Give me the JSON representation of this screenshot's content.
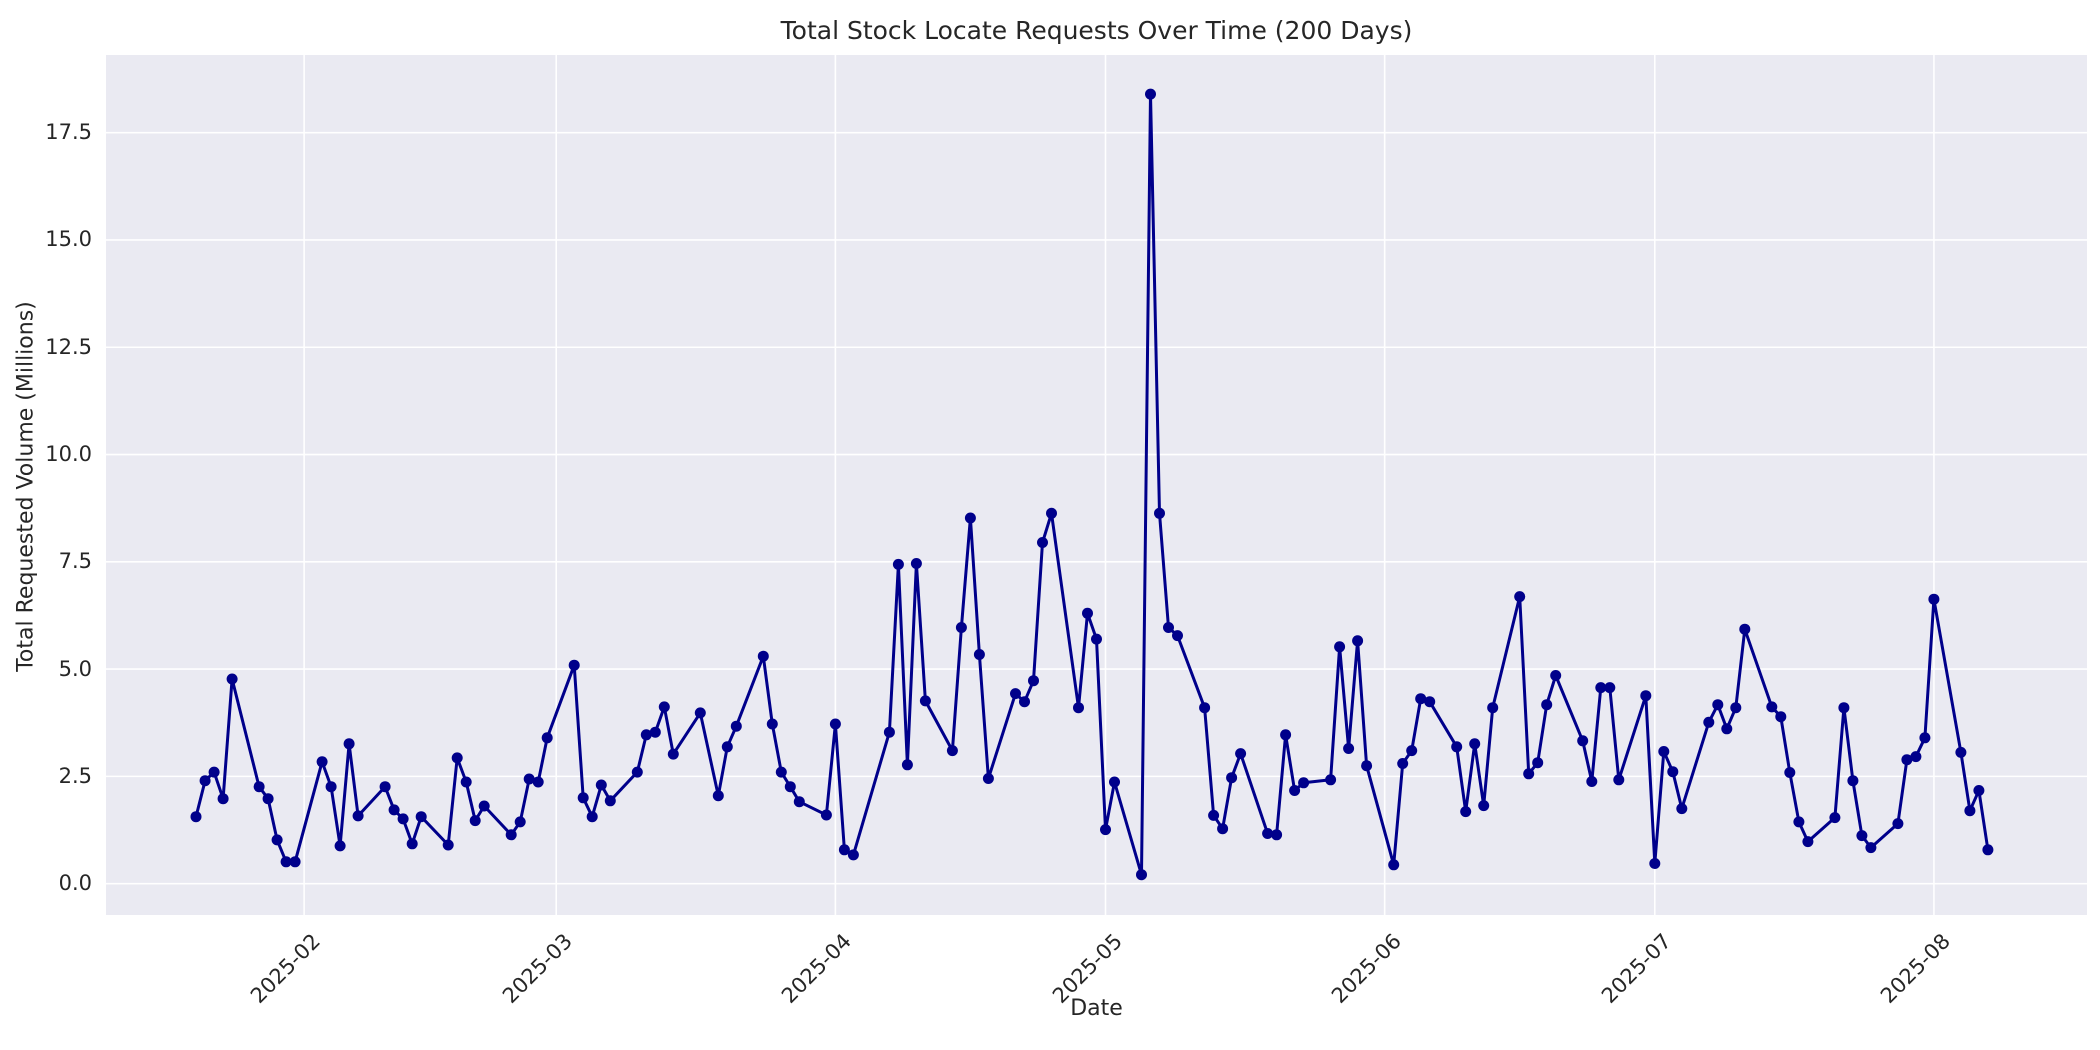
{
  "chart_data": {
    "type": "line",
    "title": "Total Stock Locate Requests Over Time (200 Days)",
    "xlabel": "Date",
    "ylabel": "Total Requested Volume (Millions)",
    "grid": true,
    "legend": "none",
    "plot_bg_color": "#eaeaf2",
    "grid_color": "#ffffff",
    "line_color": "#00008b",
    "marker": "circle",
    "text_color": "#262626",
    "x_axis_range": [
      "2025-01-10",
      "2025-08-18"
    ],
    "y_axis_range": [
      -0.73,
      19.31
    ],
    "y_ticks": [
      0.0,
      2.5,
      5.0,
      7.5,
      10.0,
      12.5,
      15.0,
      17.5
    ],
    "y_tick_labels": [
      "0.0",
      "2.5",
      "5.0",
      "7.5",
      "10.0",
      "12.5",
      "15.0",
      "17.5"
    ],
    "x_ticks": [
      {
        "date": "2025-02-01",
        "label": "2025-02"
      },
      {
        "date": "2025-03-01",
        "label": "2025-03"
      },
      {
        "date": "2025-04-01",
        "label": "2025-04"
      },
      {
        "date": "2025-05-01",
        "label": "2025-05"
      },
      {
        "date": "2025-06-01",
        "label": "2025-06"
      },
      {
        "date": "2025-07-01",
        "label": "2025-07"
      },
      {
        "date": "2025-08-01",
        "label": "2025-08"
      }
    ],
    "series": [
      {
        "name": "Total Stock Locate Requests",
        "dates": [
          "2025-01-20",
          "2025-01-21",
          "2025-01-22",
          "2025-01-23",
          "2025-01-24",
          "2025-01-27",
          "2025-01-28",
          "2025-01-29",
          "2025-01-30",
          "2025-01-31",
          "2025-02-03",
          "2025-02-04",
          "2025-02-05",
          "2025-02-06",
          "2025-02-07",
          "2025-02-10",
          "2025-02-11",
          "2025-02-12",
          "2025-02-13",
          "2025-02-14",
          "2025-02-17",
          "2025-02-18",
          "2025-02-19",
          "2025-02-20",
          "2025-02-21",
          "2025-02-24",
          "2025-02-25",
          "2025-02-26",
          "2025-02-27",
          "2025-02-28",
          "2025-03-03",
          "2025-03-04",
          "2025-03-05",
          "2025-03-06",
          "2025-03-07",
          "2025-03-10",
          "2025-03-11",
          "2025-03-12",
          "2025-03-13",
          "2025-03-14",
          "2025-03-17",
          "2025-03-19",
          "2025-03-20",
          "2025-03-21",
          "2025-03-24",
          "2025-03-25",
          "2025-03-26",
          "2025-03-27",
          "2025-03-28",
          "2025-03-31",
          "2025-04-01",
          "2025-04-02",
          "2025-04-03",
          "2025-04-07",
          "2025-04-08",
          "2025-04-09",
          "2025-04-10",
          "2025-04-11",
          "2025-04-14",
          "2025-04-15",
          "2025-04-16",
          "2025-04-17",
          "2025-04-18",
          "2025-04-21",
          "2025-04-22",
          "2025-04-23",
          "2025-04-24",
          "2025-04-25",
          "2025-04-28",
          "2025-04-29",
          "2025-04-30",
          "2025-05-01",
          "2025-05-02",
          "2025-05-05",
          "2025-05-06",
          "2025-05-07",
          "2025-05-08",
          "2025-05-09",
          "2025-05-12",
          "2025-05-13",
          "2025-05-14",
          "2025-05-15",
          "2025-05-16",
          "2025-05-19",
          "2025-05-20",
          "2025-05-21",
          "2025-05-22",
          "2025-05-23",
          "2025-05-26",
          "2025-05-27",
          "2025-05-28",
          "2025-05-29",
          "2025-05-30",
          "2025-06-02",
          "2025-06-03",
          "2025-06-04",
          "2025-06-05",
          "2025-06-06",
          "2025-06-09",
          "2025-06-10",
          "2025-06-11",
          "2025-06-12",
          "2025-06-13",
          "2025-06-16",
          "2025-06-17",
          "2025-06-18",
          "2025-06-19",
          "2025-06-20",
          "2025-06-23",
          "2025-06-24",
          "2025-06-25",
          "2025-06-26",
          "2025-06-27",
          "2025-06-30",
          "2025-07-01",
          "2025-07-02",
          "2025-07-03",
          "2025-07-04",
          "2025-07-07",
          "2025-07-08",
          "2025-07-09",
          "2025-07-10",
          "2025-07-11",
          "2025-07-14",
          "2025-07-15",
          "2025-07-16",
          "2025-07-17",
          "2025-07-18",
          "2025-07-21",
          "2025-07-22",
          "2025-07-23",
          "2025-07-24",
          "2025-07-25",
          "2025-07-28",
          "2025-07-29",
          "2025-07-30",
          "2025-07-31",
          "2025-08-01",
          "2025-08-04",
          "2025-08-05",
          "2025-08-06",
          "2025-08-07"
        ],
        "values": [
          1.56,
          2.4,
          2.6,
          1.98,
          4.77,
          2.26,
          1.98,
          1.02,
          0.51,
          0.51,
          2.84,
          2.26,
          0.88,
          3.26,
          1.58,
          2.26,
          1.72,
          1.51,
          0.93,
          1.56,
          0.9,
          2.93,
          2.37,
          1.47,
          1.81,
          1.14,
          1.44,
          2.44,
          2.37,
          3.4,
          5.09,
          2.0,
          1.56,
          2.3,
          1.93,
          2.6,
          3.47,
          3.53,
          4.12,
          3.02,
          3.98,
          2.05,
          3.19,
          3.67,
          5.3,
          3.72,
          2.6,
          2.26,
          1.91,
          1.6,
          3.72,
          0.79,
          0.67,
          3.53,
          7.44,
          2.77,
          7.46,
          4.26,
          3.1,
          5.97,
          8.52,
          5.34,
          2.45,
          4.43,
          4.24,
          4.73,
          7.95,
          8.63,
          4.1,
          6.3,
          5.7,
          1.26,
          2.37,
          0.21,
          18.4,
          8.63,
          5.97,
          5.78,
          4.1,
          1.59,
          1.28,
          2.47,
          3.03,
          1.17,
          1.14,
          3.47,
          2.17,
          2.35,
          2.42,
          5.52,
          3.15,
          5.66,
          2.75,
          0.44,
          2.8,
          3.1,
          4.31,
          4.24,
          3.19,
          1.68,
          3.26,
          1.82,
          4.1,
          6.69,
          2.56,
          2.82,
          4.17,
          4.85,
          3.33,
          2.38,
          4.57,
          4.57,
          2.42,
          4.38,
          0.47,
          3.08,
          2.61,
          1.75,
          3.76,
          4.17,
          3.61,
          4.1,
          5.93,
          4.12,
          3.89,
          2.59,
          1.44,
          0.98,
          1.54,
          4.1,
          2.4,
          1.12,
          0.84,
          1.4,
          2.89,
          2.96,
          3.4,
          6.63,
          3.06,
          1.7,
          2.17,
          0.79
        ]
      }
    ]
  }
}
